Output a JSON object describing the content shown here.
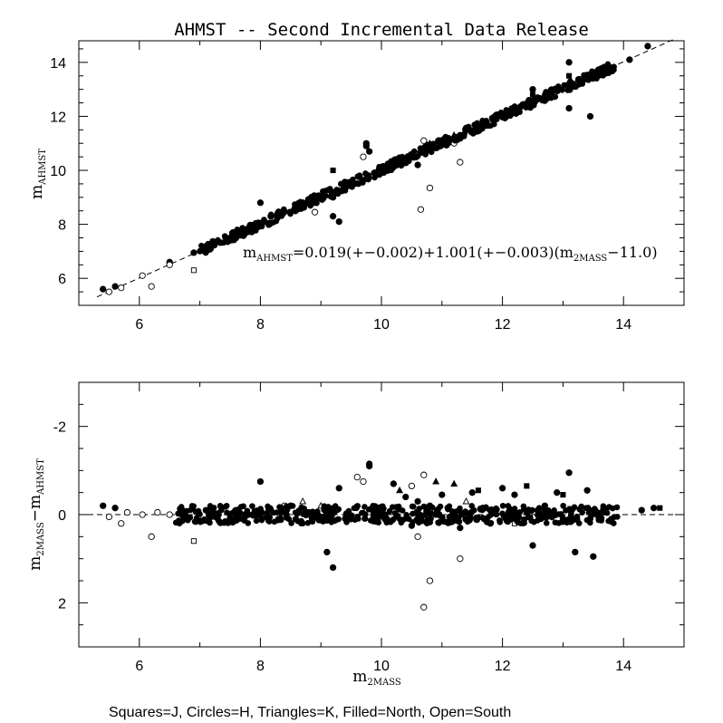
{
  "caption": "Squares=J, Circles=H, Triangles=K, Filled=North, Open=South",
  "chart_data": [
    {
      "type": "scatter",
      "title": "AHMST -- Second Incremental Data Release",
      "xlabel": "",
      "ylabel": "m_AHMST",
      "xlim": [
        5.0,
        15.0
      ],
      "ylim": [
        5.0,
        14.8
      ],
      "x_ticks": [
        "6",
        "8",
        "10",
        "12",
        "14"
      ],
      "y_ticks": [
        "6",
        "8",
        "10",
        "12",
        "14"
      ],
      "fit_line": {
        "intercept_at_11": 11.019,
        "slope": 1.001,
        "pivot": 11.0,
        "style": "dashed"
      },
      "annotation": "m_AHMST=0.019(+-0.002)+1.001(+-0.003)(m_2MASS-11.0)",
      "annotation_parts": {
        "m1": "m",
        "s1": "AHMST",
        "eq": "=0.019(+−0.002)+1.001(+−0.003)(m",
        "s2": "2MASS",
        "tail": "−11.0)"
      },
      "series": [
        {
          "marker": "circle",
          "filled": true,
          "x": [
            5.4,
            5.6,
            6.5,
            6.9,
            7.2,
            7.5,
            7.8,
            8.0,
            8.3,
            8.6,
            9.0,
            9.2,
            9.3,
            9.5,
            9.8,
            10.0,
            10.2,
            10.4,
            10.6,
            10.7,
            11.0,
            11.3,
            11.6,
            11.9,
            12.2,
            12.5,
            12.8,
            13.1,
            13.4,
            13.8,
            14.1,
            14.4,
            8.0,
            9.2,
            9.75,
            9.75,
            12.5,
            13.1,
            13.45
          ],
          "y": [
            5.6,
            5.7,
            6.6,
            6.95,
            7.2,
            7.5,
            7.85,
            8.0,
            8.3,
            8.6,
            9.0,
            8.3,
            8.1,
            9.5,
            10.7,
            10.0,
            10.2,
            10.4,
            10.2,
            10.7,
            11.0,
            11.3,
            11.6,
            11.9,
            12.2,
            12.5,
            12.8,
            14.0,
            13.4,
            13.8,
            14.1,
            14.6,
            8.8,
            9.0,
            10.9,
            11.0,
            13.0,
            12.3,
            12.0
          ]
        },
        {
          "marker": "circle",
          "filled": false,
          "x": [
            5.5,
            5.7,
            6.05,
            6.2,
            6.5,
            8.9,
            9.7,
            10.5,
            10.7,
            10.8,
            11.3,
            10.65,
            11.2
          ],
          "y": [
            5.5,
            5.65,
            6.1,
            5.7,
            6.5,
            8.45,
            10.5,
            10.5,
            11.1,
            9.35,
            10.3,
            8.55,
            11.0
          ]
        },
        {
          "marker": "square",
          "filled": true,
          "x": [
            9.2,
            12.5,
            13.5,
            13.1
          ],
          "y": [
            10.0,
            12.8,
            13.5,
            13.5
          ]
        },
        {
          "marker": "square",
          "filled": false,
          "x": [
            6.9,
            12.2
          ],
          "y": [
            6.3,
            12.2
          ]
        },
        {
          "marker": "triangle",
          "filled": true,
          "x": [
            10.8,
            11.2
          ],
          "y": [
            11.0,
            11.3
          ]
        },
        {
          "marker": "triangle",
          "filled": false,
          "x": [
            8.0,
            8.7,
            10.1
          ],
          "y": [
            8.0,
            8.8,
            10.1
          ]
        }
      ]
    },
    {
      "type": "scatter",
      "title": "",
      "xlabel": "m_2MASS",
      "ylabel": "m_2MASS - m_AHMST",
      "xlim": [
        5.0,
        15.0
      ],
      "ylim": [
        3.0,
        -3.0
      ],
      "x_ticks": [
        "6",
        "8",
        "10",
        "12",
        "14"
      ],
      "y_ticks": [
        "-2",
        "0",
        "2"
      ],
      "xlabel_parts": {
        "m": "m",
        "s": "2MASS"
      },
      "ylabel_parts": {
        "m1": "m",
        "s1": "2MASS",
        "op": "−m",
        "s2": "AHMST"
      },
      "reference_line": {
        "y": 0,
        "style": "dashed"
      },
      "series": [
        {
          "marker": "circle",
          "filled": true,
          "x": [
            5.4,
            5.6,
            7.1,
            8.0,
            8.3,
            8.5,
            9.1,
            9.2,
            9.3,
            9.8,
            9.8,
            10.2,
            10.4,
            10.5,
            10.6,
            10.8,
            11.0,
            11.3,
            11.5,
            11.8,
            12.0,
            12.2,
            12.5,
            12.7,
            12.9,
            13.1,
            13.2,
            13.4,
            13.5,
            13.8,
            14.3,
            14.5,
            12.1,
            11.7,
            10.9,
            13.0,
            12.4,
            9.5,
            8.8,
            7.8
          ],
          "y": [
            -0.2,
            -0.15,
            -0.1,
            -0.75,
            0.1,
            -0.2,
            0.85,
            1.2,
            -0.6,
            -1.15,
            -1.1,
            -0.7,
            -0.4,
            0.25,
            -0.3,
            -0.2,
            -0.45,
            0.3,
            -0.5,
            0.2,
            -0.6,
            -0.45,
            0.7,
            -0.2,
            -0.5,
            -0.95,
            0.85,
            -0.55,
            0.95,
            0.1,
            -0.1,
            -0.15,
            -0.05,
            0.1,
            0.0,
            0.1,
            -0.05,
            0.1,
            -0.05,
            0.0
          ]
        },
        {
          "marker": "circle",
          "filled": false,
          "x": [
            5.5,
            5.7,
            5.8,
            6.05,
            6.2,
            6.3,
            6.5,
            9.6,
            9.7,
            10.5,
            10.7,
            10.8,
            11.3,
            10.7,
            10.6,
            8.4
          ],
          "y": [
            0.05,
            0.2,
            -0.05,
            0.0,
            0.5,
            -0.05,
            0.0,
            -0.85,
            -0.75,
            -0.65,
            -0.9,
            1.5,
            1.0,
            2.1,
            0.5,
            -0.2
          ]
        },
        {
          "marker": "square",
          "filled": true,
          "x": [
            11.6,
            12.4,
            13.0,
            14.6
          ],
          "y": [
            -0.55,
            -0.65,
            -0.45,
            -0.15
          ]
        },
        {
          "marker": "square",
          "filled": false,
          "x": [
            6.9,
            12.2
          ],
          "y": [
            0.6,
            0.2
          ]
        },
        {
          "marker": "triangle",
          "filled": true,
          "x": [
            10.9,
            11.2,
            10.3
          ],
          "y": [
            -0.75,
            -0.7,
            -0.55
          ]
        },
        {
          "marker": "triangle",
          "filled": false,
          "x": [
            8.7,
            9.0,
            11.4
          ],
          "y": [
            -0.3,
            -0.2,
            -0.3
          ]
        }
      ]
    }
  ]
}
